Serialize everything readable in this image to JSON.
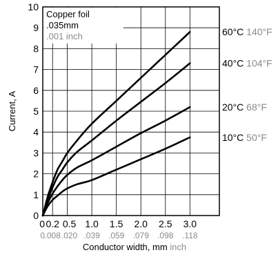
{
  "chart_data": {
    "type": "line",
    "title": "",
    "xlabel": "Conductor width, mm",
    "xlabel_secondary": "inch",
    "ylabel": "Current, A",
    "xlim": [
      0,
      3.6
    ],
    "ylim": [
      0,
      10
    ],
    "grid": true,
    "x_ticks": [
      0,
      0.2,
      0.5,
      1.0,
      1.5,
      2.0,
      2.5,
      3.0
    ],
    "x_tick_labels": [
      "0",
      "0.2",
      "0.5",
      "1.0",
      "1.5",
      "2.0",
      "2.5",
      "3.0"
    ],
    "x_tick_labels_inch": [
      "0",
      ".008",
      ".020",
      ".039",
      ".059",
      ".079",
      ".098",
      ".118"
    ],
    "y_ticks": [
      0,
      1,
      2,
      3,
      4,
      5,
      6,
      7,
      8,
      9,
      10
    ],
    "y_tick_labels": [
      "0",
      "1",
      "2",
      "3",
      "4",
      "5",
      "6",
      "7",
      "8",
      "9",
      "10"
    ],
    "info_box": {
      "line1": "Copper foil",
      "line2": ".035mm",
      "line3": ".001 inch"
    },
    "series": [
      {
        "label_c": "60°C",
        "label_f": "140°F",
        "x": [
          0,
          0.1,
          0.2,
          0.3,
          0.4,
          0.5,
          0.7,
          1.0,
          1.5,
          2.0,
          2.5,
          3.0
        ],
        "y": [
          0,
          0.9,
          1.6,
          2.2,
          2.6,
          3.0,
          3.6,
          4.4,
          5.5,
          6.6,
          7.7,
          8.8
        ]
      },
      {
        "label_c": "40°C",
        "label_f": "104°F",
        "x": [
          0,
          0.1,
          0.2,
          0.3,
          0.4,
          0.5,
          0.7,
          1.0,
          1.5,
          2.0,
          2.5,
          3.0
        ],
        "y": [
          0,
          0.75,
          1.35,
          1.85,
          2.2,
          2.55,
          3.05,
          3.6,
          4.55,
          5.45,
          6.35,
          7.3
        ]
      },
      {
        "label_c": "20°C",
        "label_f": "68°F",
        "x": [
          0,
          0.1,
          0.2,
          0.3,
          0.4,
          0.5,
          0.7,
          1.0,
          1.5,
          2.0,
          2.5,
          3.0
        ],
        "y": [
          0,
          0.6,
          1.05,
          1.4,
          1.7,
          1.95,
          2.3,
          2.65,
          3.3,
          3.95,
          4.55,
          5.2
        ]
      },
      {
        "label_c": "10°C",
        "label_f": "50°F",
        "x": [
          0,
          0.1,
          0.2,
          0.3,
          0.4,
          0.5,
          0.7,
          1.0,
          1.5,
          2.0,
          2.5,
          3.0
        ],
        "y": [
          0,
          0.45,
          0.75,
          0.95,
          1.15,
          1.3,
          1.5,
          1.7,
          2.2,
          2.7,
          3.2,
          3.75
        ]
      }
    ],
    "colors": {
      "line": "#000000",
      "grid": "#000000",
      "secondary_text": "#8a8a8a"
    }
  }
}
